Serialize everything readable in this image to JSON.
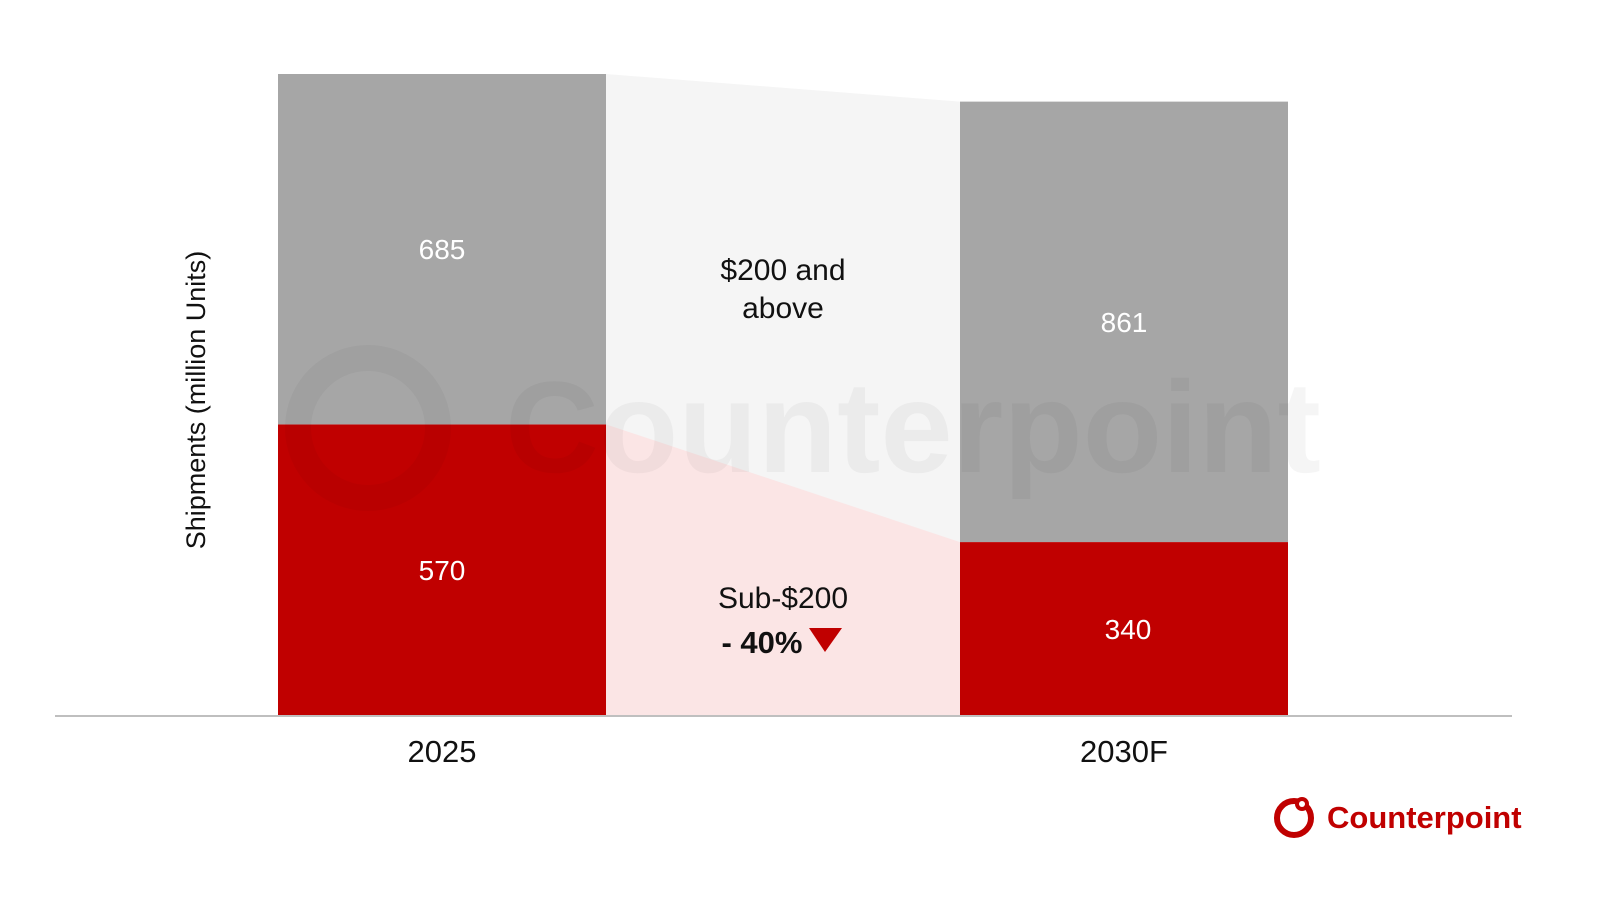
{
  "chart_data": {
    "type": "bar",
    "stacked": true,
    "categories": [
      "2025",
      "2030F"
    ],
    "series": [
      {
        "name": "Sub-$200",
        "values": [
          570,
          340
        ],
        "color": "#c00000"
      },
      {
        "name": "$200 and above",
        "values": [
          685,
          861
        ],
        "color": "#a6a6a6"
      }
    ],
    "ylabel": "Shipments (million Units)",
    "xlabel": "",
    "ylim": [
      0,
      1255
    ],
    "grid": false,
    "legend": "none",
    "annotations": {
      "upper_band": {
        "line1": "$200 and",
        "line2": "above"
      },
      "lower_band": {
        "line1": "Sub-$200",
        "change": "- 40%",
        "change_icon": "down-triangle-icon"
      }
    },
    "connector_colors": {
      "upper": "#f5f5f5",
      "lower": "#fbe5e5"
    }
  },
  "branding": {
    "logo_text": "Counterpoint",
    "logo_icon": "counterpoint-logo-icon",
    "watermark_text": "Counterpoint",
    "accent_color": "#c00000"
  }
}
